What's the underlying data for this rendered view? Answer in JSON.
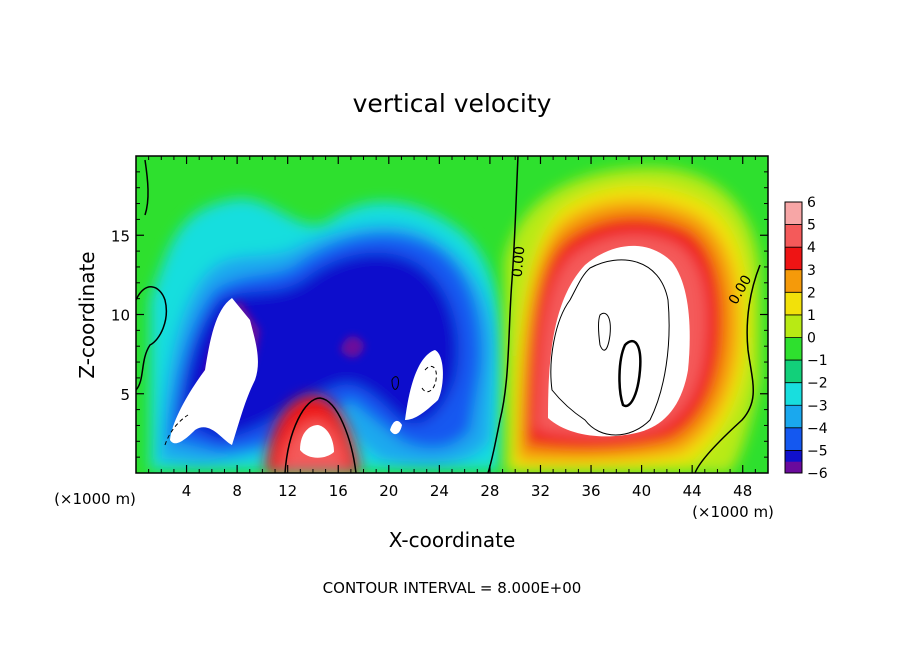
{
  "chart_data": {
    "type": "heatmap",
    "title": "vertical velocity",
    "xlabel": "X-coordinate",
    "ylabel": "Z-coordinate",
    "x_unit": "(×1000 m)",
    "y_unit": "(×1000 m)",
    "xlim": [
      0,
      50
    ],
    "ylim": [
      0,
      20
    ],
    "x_ticks": [
      4,
      8,
      12,
      16,
      20,
      24,
      28,
      32,
      36,
      40,
      44,
      48
    ],
    "y_ticks": [
      5,
      10,
      15
    ],
    "colorbar": {
      "levels": [
        6,
        5,
        4,
        3,
        2,
        1,
        0,
        -1,
        -2,
        -3,
        -4,
        -5,
        -6
      ],
      "colors": [
        "#f7a6a6",
        "#f45a5a",
        "#ee1414",
        "#f59a0a",
        "#f2e10a",
        "#b8ea14",
        "#2ee02e",
        "#12d07a",
        "#18dede",
        "#1aa8ee",
        "#1458f0",
        "#1010cc",
        "#6a0a9c"
      ]
    },
    "contour_labels": [
      "0.00",
      "0.00"
    ],
    "footer": "CONTOUR INTERVAL = 8.000E+00",
    "features": [
      {
        "sign": "negative",
        "x": 7,
        "z": 8,
        "value": -8
      },
      {
        "sign": "negative",
        "x": 23,
        "z": 6,
        "value": -8
      },
      {
        "sign": "positive",
        "x": 14,
        "z": 2,
        "value": 8
      },
      {
        "sign": "positive",
        "x": 38,
        "z": 9,
        "value": 8
      }
    ]
  }
}
